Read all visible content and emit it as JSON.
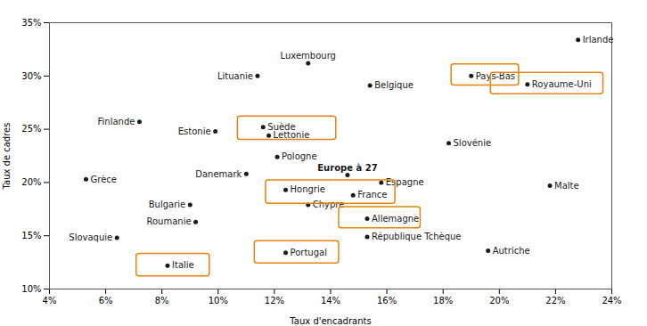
{
  "chart_data": {
    "type": "scatter",
    "xlabel": "Taux d'encadrants",
    "ylabel": "Taux de cadres",
    "xlim": [
      0.04,
      0.24
    ],
    "ylim": [
      0.1,
      0.35
    ],
    "xticks": [
      {
        "value": 0.04,
        "label": "4%"
      },
      {
        "value": 0.06,
        "label": "6%"
      },
      {
        "value": 0.08,
        "label": "8%"
      },
      {
        "value": 0.1,
        "label": "10%"
      },
      {
        "value": 0.12,
        "label": "12%"
      },
      {
        "value": 0.14,
        "label": "14%"
      },
      {
        "value": 0.16,
        "label": "16%"
      },
      {
        "value": 0.18,
        "label": "18%"
      },
      {
        "value": 0.2,
        "label": "20%"
      },
      {
        "value": 0.22,
        "label": "22%"
      },
      {
        "value": 0.24,
        "label": "24%"
      }
    ],
    "yticks": [
      {
        "value": 0.1,
        "label": "10%"
      },
      {
        "value": 0.15,
        "label": "15%"
      },
      {
        "value": 0.2,
        "label": "20%"
      },
      {
        "value": 0.25,
        "label": "25%"
      },
      {
        "value": 0.3,
        "label": "30%"
      },
      {
        "value": 0.35,
        "label": "35%"
      }
    ],
    "grid": false,
    "color": "#1a1a1a",
    "points": [
      {
        "name": "Irlande",
        "x": 0.228,
        "y": 0.334,
        "label_side": "right",
        "bold": false
      },
      {
        "name": "Luxembourg",
        "x": 0.132,
        "y": 0.312,
        "label_side": "top",
        "bold": false
      },
      {
        "name": "Lituanie",
        "x": 0.114,
        "y": 0.3,
        "label_side": "left",
        "bold": false
      },
      {
        "name": "Pays-Bas",
        "x": 0.19,
        "y": 0.3,
        "label_side": "right",
        "bold": false
      },
      {
        "name": "Belgique",
        "x": 0.154,
        "y": 0.291,
        "label_side": "right",
        "bold": false
      },
      {
        "name": "Royaume-Uni",
        "x": 0.21,
        "y": 0.292,
        "label_side": "right",
        "bold": false
      },
      {
        "name": "Finlande",
        "x": 0.072,
        "y": 0.257,
        "label_side": "left",
        "bold": false
      },
      {
        "name": "Suède",
        "x": 0.116,
        "y": 0.252,
        "label_side": "right",
        "bold": false
      },
      {
        "name": "Estonie",
        "x": 0.099,
        "y": 0.248,
        "label_side": "left",
        "bold": false
      },
      {
        "name": "Lettonie",
        "x": 0.118,
        "y": 0.244,
        "label_side": "right",
        "bold": false
      },
      {
        "name": "Slovénie",
        "x": 0.182,
        "y": 0.237,
        "label_side": "right",
        "bold": false
      },
      {
        "name": "Pologne",
        "x": 0.121,
        "y": 0.224,
        "label_side": "right",
        "bold": false
      },
      {
        "name": "Danemark",
        "x": 0.11,
        "y": 0.208,
        "label_side": "left",
        "bold": false
      },
      {
        "name": "Europe à 27",
        "x": 0.146,
        "y": 0.207,
        "label_side": "top",
        "bold": true
      },
      {
        "name": "Espagne",
        "x": 0.158,
        "y": 0.2,
        "label_side": "right",
        "bold": false
      },
      {
        "name": "Grèce",
        "x": 0.053,
        "y": 0.203,
        "label_side": "right",
        "bold": false
      },
      {
        "name": "Malte",
        "x": 0.218,
        "y": 0.197,
        "label_side": "right",
        "bold": false
      },
      {
        "name": "Hongrie",
        "x": 0.124,
        "y": 0.193,
        "label_side": "right",
        "bold": false
      },
      {
        "name": "France",
        "x": 0.148,
        "y": 0.188,
        "label_side": "right",
        "bold": false
      },
      {
        "name": "Bulgarie",
        "x": 0.09,
        "y": 0.179,
        "label_side": "left",
        "bold": false
      },
      {
        "name": "Chypre",
        "x": 0.132,
        "y": 0.179,
        "label_side": "right",
        "bold": false
      },
      {
        "name": "Allemagne",
        "x": 0.153,
        "y": 0.166,
        "label_side": "right",
        "bold": false
      },
      {
        "name": "Roumanie",
        "x": 0.092,
        "y": 0.163,
        "label_side": "left",
        "bold": false
      },
      {
        "name": "République Tchèque",
        "x": 0.153,
        "y": 0.149,
        "label_side": "right",
        "bold": false
      },
      {
        "name": "Autriche",
        "x": 0.196,
        "y": 0.136,
        "label_side": "right",
        "bold": false
      },
      {
        "name": "Slovaquie",
        "x": 0.064,
        "y": 0.148,
        "label_side": "left",
        "bold": false
      },
      {
        "name": "Portugal",
        "x": 0.124,
        "y": 0.134,
        "label_side": "right",
        "bold": false
      },
      {
        "name": "Italie",
        "x": 0.082,
        "y": 0.122,
        "label_side": "right",
        "bold": false
      }
    ],
    "boxes": [
      {
        "x1": 0.107,
        "y1": 0.24,
        "x2": 0.142,
        "y2": 0.262,
        "color": "#E8820C"
      },
      {
        "x1": 0.117,
        "y1": 0.18,
        "x2": 0.163,
        "y2": 0.202,
        "color": "#E8820C"
      },
      {
        "x1": 0.183,
        "y1": 0.291,
        "x2": 0.207,
        "y2": 0.311,
        "color": "#E8820C"
      },
      {
        "x1": 0.197,
        "y1": 0.283,
        "x2": 0.237,
        "y2": 0.303,
        "color": "#E8820C"
      },
      {
        "x1": 0.143,
        "y1": 0.157,
        "x2": 0.172,
        "y2": 0.177,
        "color": "#E8820C"
      },
      {
        "x1": 0.113,
        "y1": 0.124,
        "x2": 0.143,
        "y2": 0.145,
        "color": "#E8820C"
      },
      {
        "x1": 0.071,
        "y1": 0.112,
        "x2": 0.097,
        "y2": 0.133,
        "color": "#E8820C"
      }
    ]
  }
}
